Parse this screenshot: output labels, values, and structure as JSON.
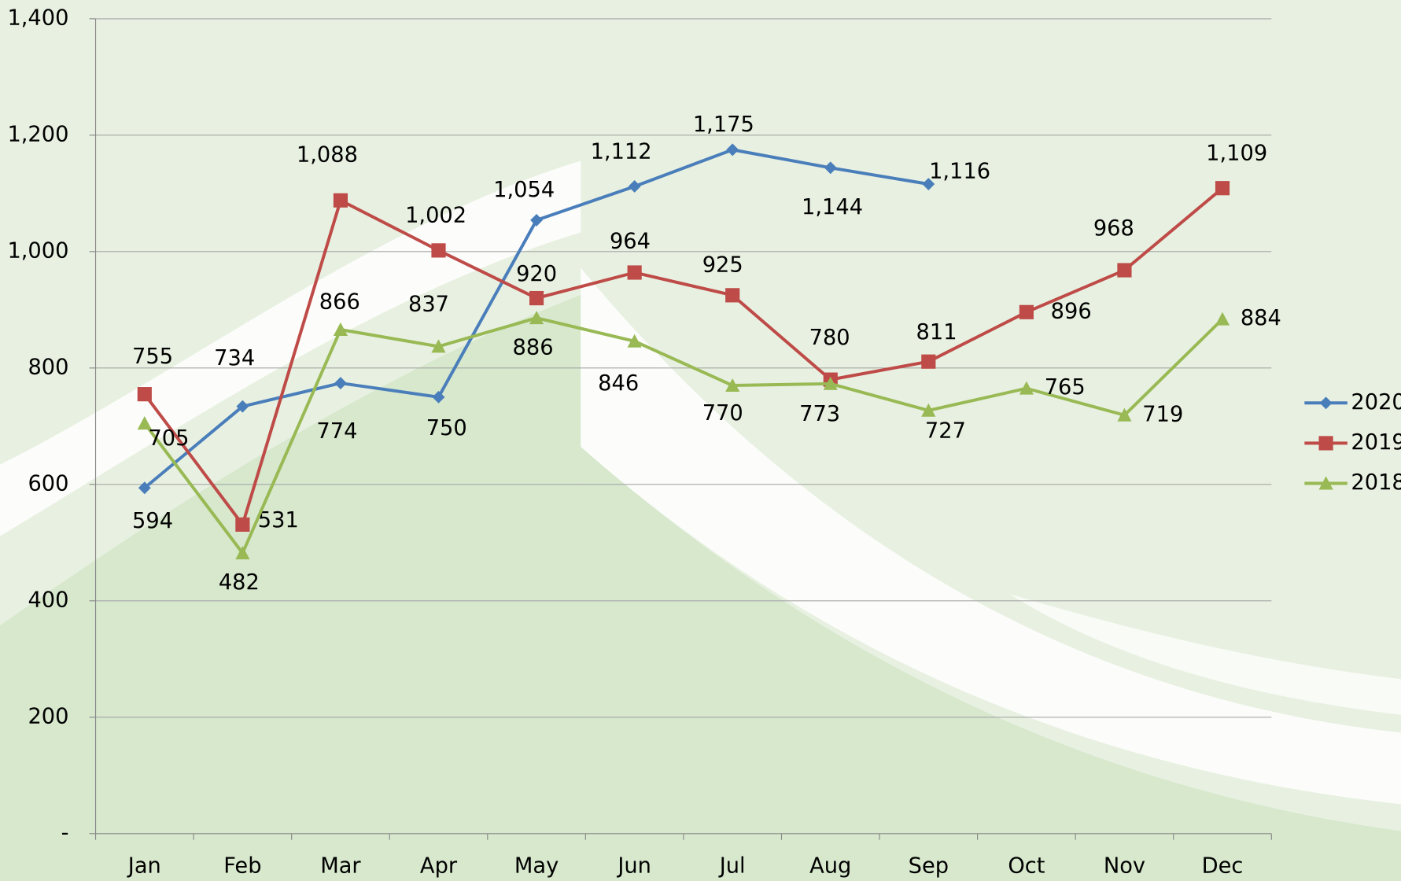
{
  "chart_data": {
    "type": "line",
    "categories": [
      "Jan",
      "Feb",
      "Mar",
      "Apr",
      "May",
      "Jun",
      "Jul",
      "Aug",
      "Sep",
      "Oct",
      "Nov",
      "Dec"
    ],
    "series": [
      {
        "name": "2020",
        "color": "#4a7ebb",
        "marker": "diamond",
        "values": [
          594,
          734,
          774,
          750,
          1054,
          1112,
          1175,
          1144,
          1116,
          null,
          null,
          null
        ],
        "value_labels": [
          "594",
          "734",
          "774",
          "750",
          "1,054",
          "1,112",
          "1,175",
          "1,144",
          "1,116",
          null,
          null,
          null
        ]
      },
      {
        "name": "2019",
        "color": "#be4b48",
        "marker": "square",
        "values": [
          755,
          531,
          1088,
          1002,
          920,
          964,
          925,
          780,
          811,
          896,
          968,
          1109
        ],
        "value_labels": [
          "755",
          "531",
          "1,088",
          "1,002",
          "920",
          "964",
          "925",
          "780",
          "811",
          "896",
          "968",
          "1,109"
        ]
      },
      {
        "name": "2018",
        "color": "#98b954",
        "marker": "triangle",
        "values": [
          705,
          482,
          866,
          837,
          886,
          846,
          770,
          773,
          727,
          765,
          719,
          884
        ],
        "value_labels": [
          "705",
          "482",
          "866",
          "837",
          "886",
          "846",
          "770",
          "773",
          "727",
          "765",
          "719",
          "884"
        ]
      }
    ],
    "ylim": [
      0,
      1400
    ],
    "yticks": [
      {
        "value": 0,
        "label": "-"
      },
      200,
      400,
      600,
      800,
      {
        "value": 1000,
        "label": "1,000"
      },
      {
        "value": 1200,
        "label": "1,200"
      },
      {
        "value": 1400,
        "label": "1,400"
      }
    ],
    "grid": true,
    "legend": "right"
  }
}
